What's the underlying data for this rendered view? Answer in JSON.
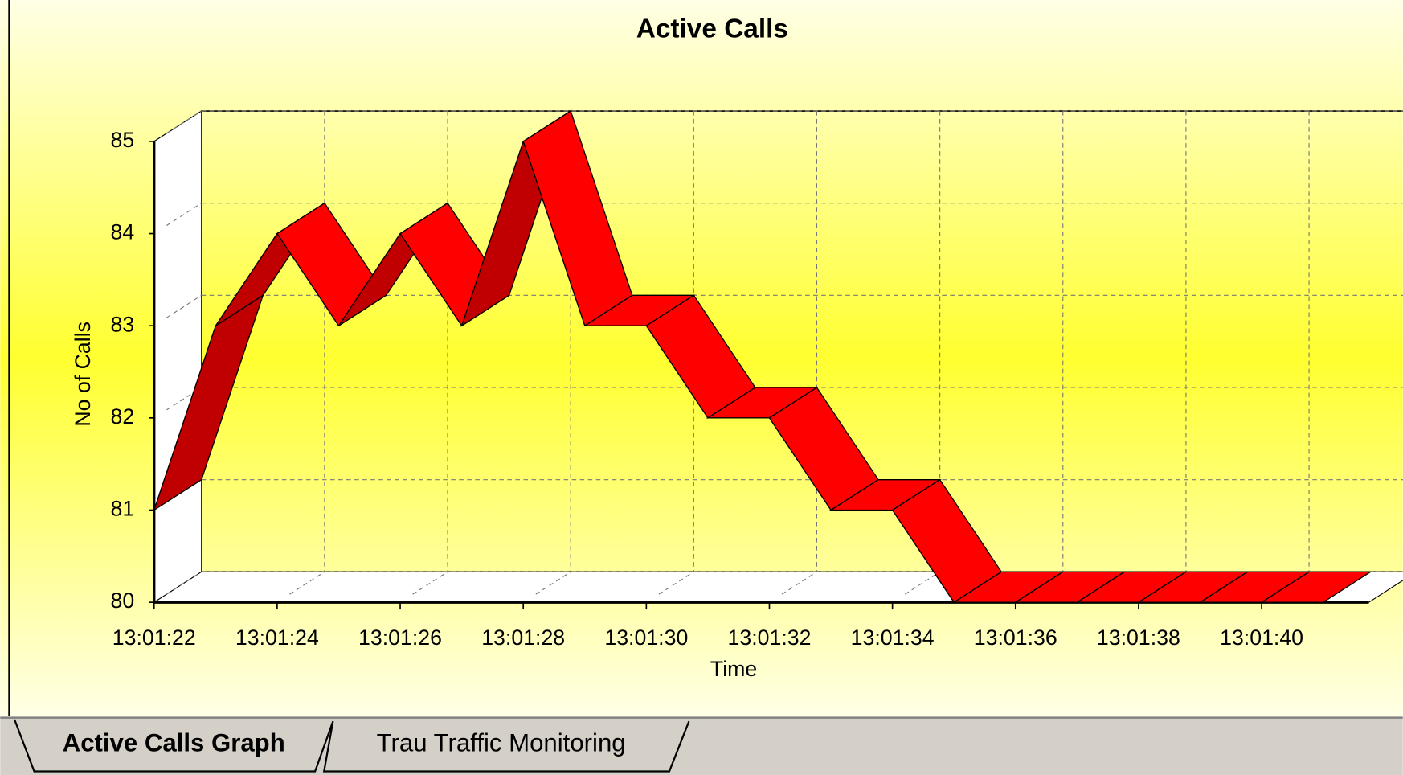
{
  "chart_data": {
    "type": "line3d",
    "title": "Active Calls",
    "x_label": "Time",
    "y_label": "No of Calls",
    "categories": [
      "13:01:22",
      null,
      "13:01:24",
      null,
      "13:01:26",
      null,
      "13:01:28",
      null,
      "13:01:30",
      null,
      "13:01:32",
      null,
      "13:01:34",
      null,
      "13:01:36",
      null,
      "13:01:38",
      null,
      "13:01:40",
      null
    ],
    "values": [
      81,
      83,
      84,
      83,
      84,
      83,
      85,
      83,
      83,
      82,
      82,
      81,
      81,
      80,
      80,
      80,
      80,
      80,
      80,
      80
    ],
    "color": "#ff0000",
    "ylim": [
      80,
      85
    ],
    "yticks": [
      80,
      81,
      82,
      83,
      84,
      85
    ],
    "grid": true
  },
  "tabs": [
    "Active Calls Graph",
    "Trau Traffic Monitoring"
  ]
}
